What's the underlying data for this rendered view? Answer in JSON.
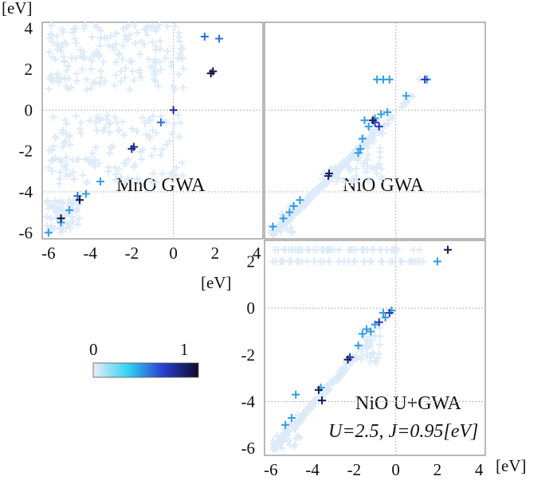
{
  "figure": {
    "unit_label": "[eV]",
    "colorbar": {
      "min_label": "0",
      "max_label": "1",
      "stops": [
        "#e8ecf8",
        "#33d3f0",
        "#2a3fcf",
        "#0d0d2a"
      ]
    }
  },
  "chart_data": [
    {
      "type": "scatter",
      "panel_label": "MnO  GWA",
      "xlim": [
        -6.3,
        4.3
      ],
      "ylim": [
        -6.3,
        4.3
      ],
      "xticks": [
        "-6",
        "-4",
        "-2",
        "0",
        "2",
        "4"
      ],
      "yticks": [
        "4",
        "2",
        "0",
        "-2",
        "-4",
        "-6"
      ],
      "y_unit_label": "[eV]",
      "x_unit_label": "[eV]",
      "grid": "dotted zero lines",
      "series": [
        {
          "weight": 0.55,
          "points": [
            [
              -4.6,
              -4.2
            ],
            [
              2.2,
              3.5
            ],
            [
              1.5,
              3.6
            ],
            [
              -0.6,
              -0.6
            ]
          ]
        },
        {
          "weight": 0.45,
          "points": [
            [
              -5.4,
              -5.5
            ],
            [
              -5.0,
              -4.9
            ],
            [
              -6.0,
              -6.0
            ],
            [
              -4.2,
              -4.1
            ]
          ]
        },
        {
          "weight": 0.8,
          "points": [
            [
              0.0,
              0.0
            ],
            [
              -2.0,
              -1.9
            ],
            [
              -1.9,
              -1.8
            ]
          ]
        },
        {
          "weight": 0.95,
          "points": [
            [
              1.8,
              1.8
            ],
            [
              1.9,
              1.9
            ],
            [
              -5.4,
              -5.3
            ],
            [
              -4.5,
              -4.4
            ]
          ]
        }
      ],
      "legend_marker_weight": 0.45
    },
    {
      "type": "scatter",
      "panel_label": "NiO  GWA",
      "xlim": [
        -6.3,
        4.3
      ],
      "ylim": [
        -6.3,
        4.3
      ],
      "grid": "dotted zero lines",
      "series": [
        {
          "weight": 0.45,
          "points": [
            [
              -0.9,
              1.5
            ],
            [
              -0.6,
              1.5
            ],
            [
              -0.3,
              1.5
            ],
            [
              1.5,
              1.5
            ],
            [
              0.5,
              0.7
            ],
            [
              -0.4,
              -0.1
            ],
            [
              -0.7,
              -0.2
            ],
            [
              -1.5,
              -0.5
            ],
            [
              -1.6,
              -1.4
            ],
            [
              -1.7,
              -1.9
            ],
            [
              -1.8,
              -2.1
            ],
            [
              -1.3,
              -0.8
            ],
            [
              -1.0,
              -0.4
            ],
            [
              -5.4,
              -5.3
            ],
            [
              -5.1,
              -5.0
            ],
            [
              -4.9,
              -4.7
            ],
            [
              -4.6,
              -4.4
            ],
            [
              -5.9,
              -5.7
            ]
          ]
        },
        {
          "weight": 0.7,
          "points": [
            [
              -0.8,
              -0.8
            ],
            [
              -1.0,
              -0.6
            ],
            [
              1.4,
              1.5
            ]
          ]
        },
        {
          "weight": 0.9,
          "points": [
            [
              -1.1,
              -0.5
            ],
            [
              -3.2,
              -3.1
            ]
          ]
        }
      ],
      "legend_marker_weight": 0.8
    },
    {
      "type": "scatter",
      "panel_label": "NiO  U+GWA",
      "annotation": "U=2.5, J=0.95[eV]",
      "xlim": [
        -6.3,
        4.3
      ],
      "ylim": [
        -6.3,
        2.9
      ],
      "xticks": [
        "-6",
        "-4",
        "-2",
        "0",
        "2",
        "4"
      ],
      "yticks": [
        "2",
        "0",
        "-2",
        "-4",
        "-6"
      ],
      "x_unit_label": "[eV]",
      "y_unit_label": "[eV]",
      "grid": "dotted zero lines",
      "series": [
        {
          "weight": 0.45,
          "points": [
            [
              2.0,
              2.0
            ],
            [
              -0.2,
              -0.1
            ],
            [
              -0.6,
              -0.2
            ],
            [
              -1.0,
              -0.7
            ],
            [
              -1.4,
              -0.9
            ],
            [
              -1.6,
              -1.1
            ],
            [
              -1.8,
              -1.6
            ],
            [
              -2.2,
              -2.1
            ],
            [
              -3.6,
              -3.4
            ],
            [
              -5.0,
              -4.7
            ],
            [
              -5.3,
              -5.0
            ],
            [
              -4.8,
              -3.7
            ],
            [
              -1.2,
              -1.0
            ],
            [
              -0.5,
              -0.4
            ]
          ]
        },
        {
          "weight": 0.7,
          "points": [
            [
              -0.3,
              -0.2
            ],
            [
              -0.8,
              -0.6
            ],
            [
              -2.2,
              -2.1
            ]
          ]
        },
        {
          "weight": 0.9,
          "points": [
            [
              2.5,
              2.5
            ],
            [
              -3.7,
              -3.5
            ],
            [
              -2.3,
              -2.2
            ]
          ]
        }
      ],
      "legend_marker_weight": 0.9
    }
  ]
}
